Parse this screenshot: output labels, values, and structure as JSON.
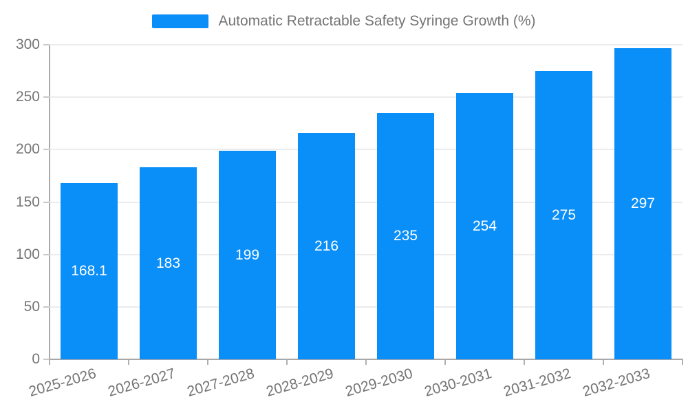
{
  "chart_data": {
    "type": "bar",
    "title": "Automatic Retractable Safety Syringe Growth (%)",
    "categories": [
      "2025-2026",
      "2026-2027",
      "2027-2028",
      "2028-2029",
      "2029-2030",
      "2030-2031",
      "2031-2032",
      "2032-2033"
    ],
    "values": [
      168.1,
      183,
      199,
      216,
      235,
      254,
      275,
      297
    ],
    "value_labels": [
      "168.1",
      "183",
      "199",
      "216",
      "235",
      "254",
      "275",
      "297"
    ],
    "xlabel": "",
    "ylabel": "",
    "ylim": [
      0,
      300
    ],
    "yticks": [
      0,
      50,
      100,
      150,
      200,
      250,
      300
    ],
    "grid": true,
    "legend_position": "top",
    "colors": {
      "bar": "#0a8ef8",
      "value_label": "#ffffff",
      "axis_line": "#a8a8a8",
      "grid_line": "#ececec",
      "text": "#757575"
    }
  }
}
